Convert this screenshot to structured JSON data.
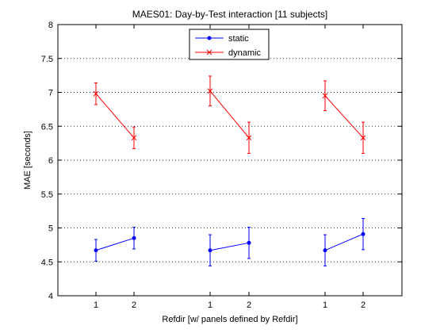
{
  "chart_data": {
    "type": "line",
    "title": "MAES01: Day-by-Test interaction  [11 subjects]",
    "xlabel": "Refdir  [w/ panels defined by Refdir]",
    "ylabel": "MAE [seconds]",
    "ylim": [
      4,
      8
    ],
    "yticks": [
      4,
      4.5,
      5,
      5.5,
      6,
      6.5,
      7,
      7.5,
      8
    ],
    "ytick_labels": [
      "4",
      "4.5",
      "5",
      "5.5",
      "6",
      "6.5",
      "7",
      "7.5",
      "8"
    ],
    "grid": "horizontal dotted",
    "legend_position": "top-center",
    "panels": [
      {
        "x_labels": [
          "1",
          "2"
        ],
        "series": [
          {
            "name": "static",
            "color": "#0000ff",
            "marker": "dot",
            "values": [
              4.67,
              4.85
            ],
            "errors": [
              0.16,
              0.16
            ]
          },
          {
            "name": "dynamic",
            "color": "#ff0000",
            "marker": "x",
            "values": [
              6.98,
              6.33
            ],
            "errors": [
              0.16,
              0.16
            ]
          }
        ]
      },
      {
        "x_labels": [
          "1",
          "2"
        ],
        "series": [
          {
            "name": "static",
            "color": "#0000ff",
            "marker": "dot",
            "values": [
              4.67,
              4.78
            ],
            "errors": [
              0.23,
              0.23
            ]
          },
          {
            "name": "dynamic",
            "color": "#ff0000",
            "marker": "x",
            "values": [
              7.02,
              6.33
            ],
            "errors": [
              0.22,
              0.23
            ]
          }
        ]
      },
      {
        "x_labels": [
          "1",
          "2"
        ],
        "series": [
          {
            "name": "static",
            "color": "#0000ff",
            "marker": "dot",
            "values": [
              4.67,
              4.91
            ],
            "errors": [
              0.23,
              0.23
            ]
          },
          {
            "name": "dynamic",
            "color": "#ff0000",
            "marker": "x",
            "values": [
              6.95,
              6.33
            ],
            "errors": [
              0.22,
              0.23
            ]
          }
        ]
      }
    ],
    "legend": [
      {
        "name": "static",
        "color": "#0000ff",
        "marker": "dot"
      },
      {
        "name": "dynamic",
        "color": "#ff0000",
        "marker": "x"
      }
    ]
  }
}
